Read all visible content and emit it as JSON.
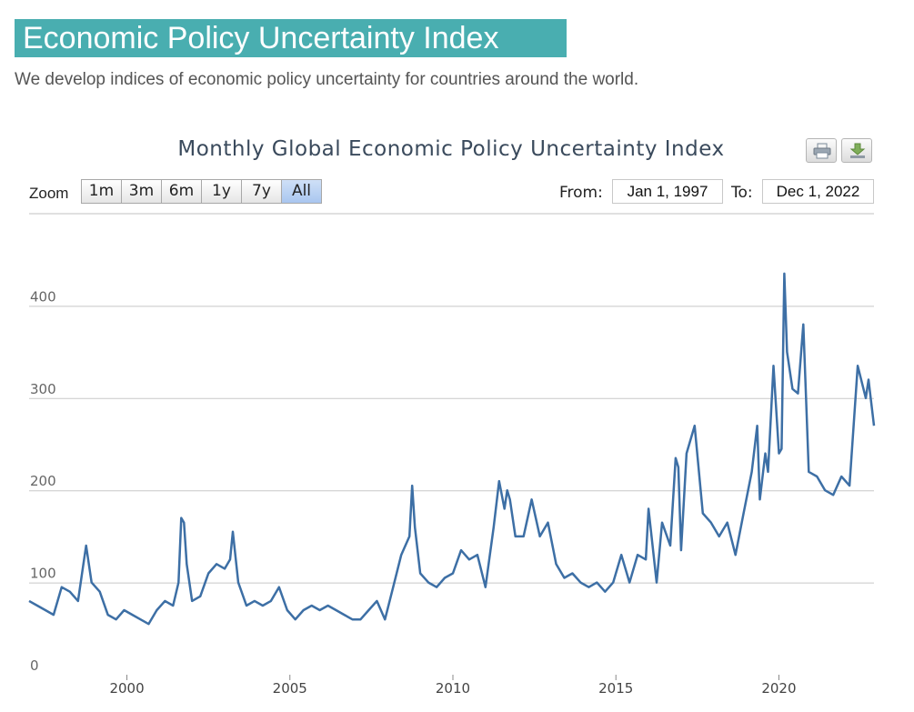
{
  "header": {
    "title": "Economic Policy Uncertainty Index",
    "tagline": "We develop indices of economic policy uncertainty for countries around the world."
  },
  "colors": {
    "banner": "#49aeb0",
    "series_line": "#3d6fa5",
    "grid": "#c8c8c8"
  },
  "toolbar": {
    "print_icon": "printer-icon",
    "download_icon": "download-icon",
    "zoom_label": "Zoom",
    "zoom_buttons": [
      "1m",
      "3m",
      "6m",
      "1y",
      "7y",
      "All"
    ],
    "zoom_selected": "All",
    "from_label": "From:",
    "from_value": "Jan 1, 1997",
    "to_label": "To:",
    "to_value": "Dec 1, 2022"
  },
  "chart_data": {
    "type": "line",
    "title": "Monthly Global Economic Policy Uncertainty Index",
    "xlabel": "",
    "ylabel": "",
    "x_range": [
      "1997-01",
      "2022-12"
    ],
    "ylim": [
      0,
      500
    ],
    "yticks": [
      0,
      100,
      200,
      300,
      400
    ],
    "xticks": [
      "2000",
      "2005",
      "2010",
      "2015",
      "2020"
    ],
    "grid": true,
    "series": [
      {
        "x": [
          "1997-01",
          "1997-04",
          "1997-07",
          "1997-10",
          "1998-01",
          "1998-04",
          "1998-07",
          "1998-09",
          "1998-10",
          "1998-12",
          "1999-03",
          "1999-06",
          "1999-09",
          "1999-12",
          "2000-03",
          "2000-06",
          "2000-09",
          "2000-12",
          "2001-03",
          "2001-06",
          "2001-08",
          "2001-09",
          "2001-10",
          "2001-11",
          "2002-01",
          "2002-04",
          "2002-07",
          "2002-10",
          "2003-01",
          "2003-03",
          "2003-04",
          "2003-06",
          "2003-09",
          "2003-12",
          "2004-03",
          "2004-06",
          "2004-09",
          "2004-12",
          "2005-03",
          "2005-06",
          "2005-09",
          "2005-12",
          "2006-03",
          "2006-06",
          "2006-09",
          "2006-12",
          "2007-03",
          "2007-06",
          "2007-09",
          "2007-12",
          "2008-03",
          "2008-06",
          "2008-09",
          "2008-10",
          "2008-11",
          "2009-01",
          "2009-04",
          "2009-07",
          "2009-10",
          "2010-01",
          "2010-04",
          "2010-07",
          "2010-10",
          "2011-01",
          "2011-04",
          "2011-06",
          "2011-08",
          "2011-09",
          "2011-10",
          "2011-12",
          "2012-03",
          "2012-06",
          "2012-09",
          "2012-12",
          "2013-03",
          "2013-06",
          "2013-09",
          "2013-12",
          "2014-03",
          "2014-06",
          "2014-09",
          "2014-12",
          "2015-03",
          "2015-06",
          "2015-09",
          "2015-12",
          "2016-01",
          "2016-04",
          "2016-06",
          "2016-09",
          "2016-11",
          "2016-12",
          "2017-01",
          "2017-03",
          "2017-06",
          "2017-09",
          "2017-12",
          "2018-03",
          "2018-06",
          "2018-09",
          "2018-12",
          "2019-03",
          "2019-05",
          "2019-06",
          "2019-08",
          "2019-09",
          "2019-11",
          "2020-01",
          "2020-02",
          "2020-03",
          "2020-04",
          "2020-05",
          "2020-06",
          "2020-08",
          "2020-10",
          "2020-12",
          "2021-03",
          "2021-06",
          "2021-09",
          "2021-12",
          "2022-03",
          "2022-06",
          "2022-09",
          "2022-10",
          "2022-12"
        ],
        "values": [
          80,
          75,
          70,
          65,
          95,
          90,
          80,
          120,
          140,
          100,
          90,
          65,
          60,
          70,
          65,
          60,
          55,
          70,
          80,
          75,
          100,
          170,
          165,
          120,
          80,
          85,
          110,
          120,
          115,
          125,
          155,
          100,
          75,
          80,
          75,
          80,
          95,
          70,
          60,
          70,
          75,
          70,
          75,
          70,
          65,
          60,
          60,
          70,
          80,
          60,
          95,
          130,
          150,
          205,
          160,
          110,
          100,
          95,
          105,
          110,
          135,
          125,
          130,
          95,
          160,
          210,
          180,
          200,
          190,
          150,
          150,
          190,
          150,
          165,
          120,
          105,
          110,
          100,
          95,
          100,
          90,
          100,
          130,
          100,
          130,
          125,
          180,
          100,
          165,
          140,
          235,
          225,
          135,
          240,
          270,
          175,
          165,
          150,
          165,
          130,
          175,
          220,
          270,
          190,
          240,
          220,
          335,
          240,
          245,
          435,
          350,
          330,
          310,
          305,
          380,
          220,
          215,
          200,
          195,
          215,
          205,
          335,
          300,
          320,
          270
        ]
      }
    ]
  }
}
